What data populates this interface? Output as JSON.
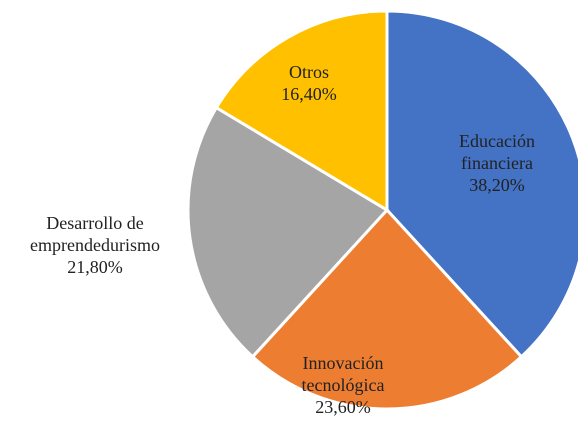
{
  "chart_data": {
    "type": "pie",
    "categories": [
      "Educación financiera",
      "Innovación tecnológica",
      "Desarrollo de emprendedurismo",
      "Otros"
    ],
    "values": [
      38.2,
      23.6,
      21.8,
      16.4
    ],
    "value_labels": [
      "38,20%",
      "23,60%",
      "21,80%",
      "16,40%"
    ],
    "colors": [
      "#4472c4",
      "#ed7d31",
      "#a5a5a5",
      "#ffc000"
    ]
  }
}
